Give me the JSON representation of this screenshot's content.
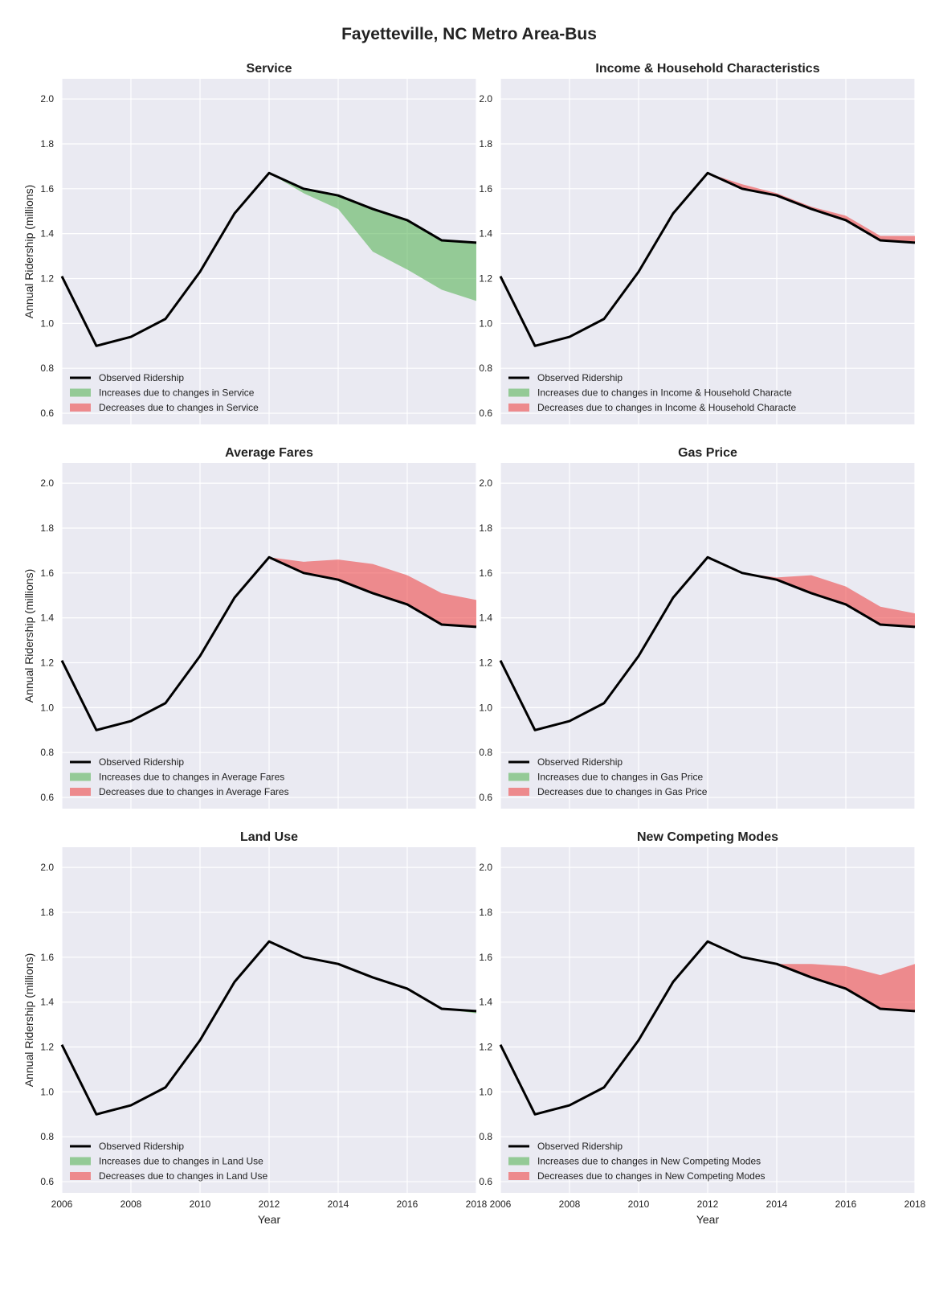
{
  "figure": {
    "title": "Fayetteville, NC Metro Area-Bus"
  },
  "colors": {
    "observed": "#000000",
    "increase": "#4daf4a",
    "decrease": "#ef3b3b",
    "plot_bg": "#eaeaf2",
    "grid": "#ffffff"
  },
  "axes": {
    "ylabel": "Annual Ridership (millions)",
    "xlabel": "Year",
    "ylim": [
      0.55,
      2.09
    ],
    "xlim": [
      2006,
      2018
    ],
    "yticks": [
      "0.6",
      "0.8",
      "1.0",
      "1.2",
      "1.4",
      "1.6",
      "1.8",
      "2.0"
    ],
    "xticks": [
      "2006",
      "2008",
      "2010",
      "2012",
      "2014",
      "2016",
      "2018"
    ]
  },
  "legend": {
    "observed_label": "Observed Ridership"
  },
  "chart_data": [
    {
      "type": "line",
      "title": "Service",
      "legend": [
        "Observed Ridership",
        "Increases due to changes in Service",
        "Decreases due to changes in Service"
      ],
      "x": [
        2006,
        2007,
        2008,
        2009,
        2010,
        2011,
        2012,
        2013,
        2014,
        2015,
        2016,
        2017,
        2018
      ],
      "observed": [
        1.21,
        0.9,
        0.94,
        1.02,
        1.23,
        1.49,
        1.67,
        1.6,
        1.57,
        1.51,
        1.46,
        1.37,
        1.36
      ],
      "counterfactual": [
        1.21,
        0.9,
        0.94,
        1.02,
        1.23,
        1.49,
        1.67,
        1.58,
        1.51,
        1.32,
        1.24,
        1.15,
        1.1
      ]
    },
    {
      "type": "line",
      "title": "Income & Household Characteristics",
      "legend": [
        "Observed Ridership",
        "Increases due to changes in Income & Household Characte",
        "Decreases due to changes in Income & Household Characte"
      ],
      "x": [
        2006,
        2007,
        2008,
        2009,
        2010,
        2011,
        2012,
        2013,
        2014,
        2015,
        2016,
        2017,
        2018
      ],
      "observed": [
        1.21,
        0.9,
        0.94,
        1.02,
        1.23,
        1.49,
        1.67,
        1.6,
        1.57,
        1.51,
        1.46,
        1.37,
        1.36
      ],
      "counterfactual": [
        1.21,
        0.9,
        0.94,
        1.02,
        1.23,
        1.49,
        1.67,
        1.62,
        1.58,
        1.52,
        1.48,
        1.39,
        1.39
      ]
    },
    {
      "type": "line",
      "title": "Average Fares",
      "legend": [
        "Observed Ridership",
        "Increases due to changes in Average Fares",
        "Decreases due to changes in Average Fares"
      ],
      "x": [
        2006,
        2007,
        2008,
        2009,
        2010,
        2011,
        2012,
        2013,
        2014,
        2015,
        2016,
        2017,
        2018
      ],
      "observed": [
        1.21,
        0.9,
        0.94,
        1.02,
        1.23,
        1.49,
        1.67,
        1.6,
        1.57,
        1.51,
        1.46,
        1.37,
        1.36
      ],
      "counterfactual": [
        1.21,
        0.9,
        0.94,
        1.02,
        1.23,
        1.49,
        1.67,
        1.65,
        1.66,
        1.64,
        1.59,
        1.51,
        1.48
      ]
    },
    {
      "type": "line",
      "title": "Gas Price",
      "legend": [
        "Observed Ridership",
        "Increases due to changes in Gas Price",
        "Decreases due to changes in Gas Price"
      ],
      "x": [
        2006,
        2007,
        2008,
        2009,
        2010,
        2011,
        2012,
        2013,
        2014,
        2015,
        2016,
        2017,
        2018
      ],
      "observed": [
        1.21,
        0.9,
        0.94,
        1.02,
        1.23,
        1.49,
        1.67,
        1.6,
        1.57,
        1.51,
        1.46,
        1.37,
        1.36
      ],
      "counterfactual": [
        1.21,
        0.9,
        0.94,
        1.02,
        1.23,
        1.49,
        1.67,
        1.6,
        1.58,
        1.59,
        1.54,
        1.45,
        1.42
      ]
    },
    {
      "type": "line",
      "title": "Land Use",
      "legend": [
        "Observed Ridership",
        "Increases due to changes in Land Use",
        "Decreases due to changes in Land Use"
      ],
      "x": [
        2006,
        2007,
        2008,
        2009,
        2010,
        2011,
        2012,
        2013,
        2014,
        2015,
        2016,
        2017,
        2018
      ],
      "observed": [
        1.21,
        0.9,
        0.94,
        1.02,
        1.23,
        1.49,
        1.67,
        1.6,
        1.57,
        1.51,
        1.46,
        1.37,
        1.36
      ],
      "counterfactual": [
        1.21,
        0.9,
        0.94,
        1.02,
        1.23,
        1.49,
        1.67,
        1.6,
        1.57,
        1.51,
        1.46,
        1.37,
        1.35
      ]
    },
    {
      "type": "line",
      "title": "New Competing Modes",
      "legend": [
        "Observed Ridership",
        "Increases due to changes in New Competing Modes",
        "Decreases due to changes in New Competing Modes"
      ],
      "x": [
        2006,
        2007,
        2008,
        2009,
        2010,
        2011,
        2012,
        2013,
        2014,
        2015,
        2016,
        2017,
        2018
      ],
      "observed": [
        1.21,
        0.9,
        0.94,
        1.02,
        1.23,
        1.49,
        1.67,
        1.6,
        1.57,
        1.51,
        1.46,
        1.37,
        1.36
      ],
      "counterfactual": [
        1.21,
        0.9,
        0.94,
        1.02,
        1.23,
        1.49,
        1.67,
        1.6,
        1.57,
        1.57,
        1.56,
        1.52,
        1.57
      ]
    }
  ]
}
